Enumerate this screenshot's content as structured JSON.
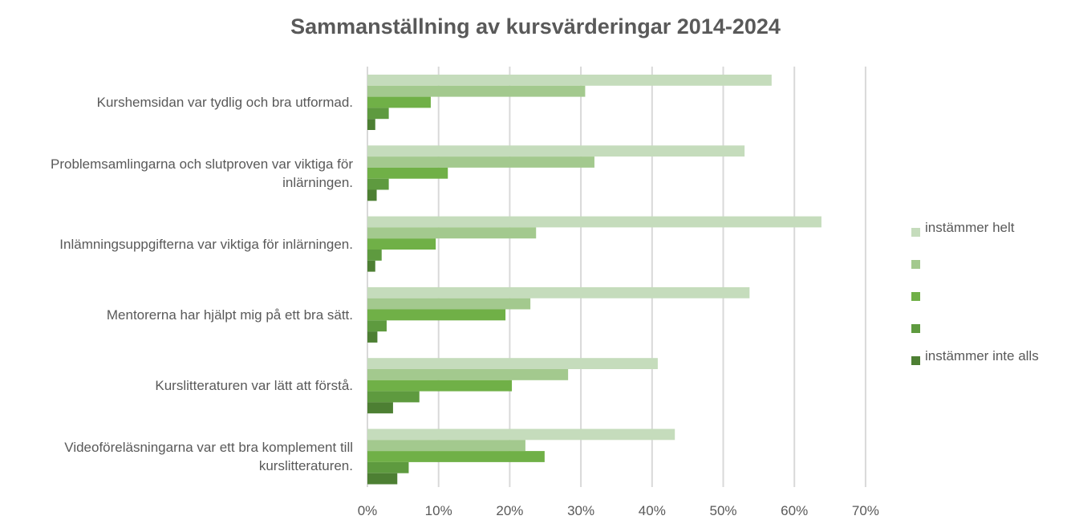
{
  "chart_data": {
    "type": "bar",
    "orientation": "horizontal",
    "title": "Sammanställning av kursvärderingar 2014-2024",
    "categories": [
      "Kurshemsidan var tydlig och bra utformad.",
      "Problemsamlingarna och slutproven var viktiga för inlärningen.",
      "Inlämningsuppgifterna var viktiga för inlärningen.",
      "Mentorerna har hjälpt mig på ett bra sätt.",
      "Kurslitteraturen var lätt att förstå.",
      "Videoföreläsningarna var ett bra komplement till kurslitteraturen."
    ],
    "series": [
      {
        "name": "instämmer helt",
        "color": "#c5dcbc",
        "values": [
          56.8,
          53.0,
          63.8,
          53.7,
          40.8,
          43.2
        ]
      },
      {
        "name": "",
        "color": "#a3c98e",
        "values": [
          30.6,
          31.9,
          23.7,
          22.9,
          28.2,
          22.2
        ]
      },
      {
        "name": "",
        "color": "#70b047",
        "values": [
          8.9,
          11.3,
          9.6,
          19.4,
          20.3,
          24.9
        ]
      },
      {
        "name": "",
        "color": "#5e9a3f",
        "values": [
          3.0,
          3.0,
          2.0,
          2.7,
          7.3,
          5.8
        ]
      },
      {
        "name": "instämmer inte alls",
        "color": "#4d7f33",
        "values": [
          1.1,
          1.3,
          1.1,
          1.4,
          3.6,
          4.2
        ]
      }
    ],
    "xlim": [
      0,
      70
    ],
    "xticks": [
      "0%",
      "10%",
      "20%",
      "30%",
      "40%",
      "50%",
      "60%",
      "70%"
    ],
    "xlabel": "",
    "ylabel": "",
    "grid": "vertical",
    "legend": "right"
  }
}
